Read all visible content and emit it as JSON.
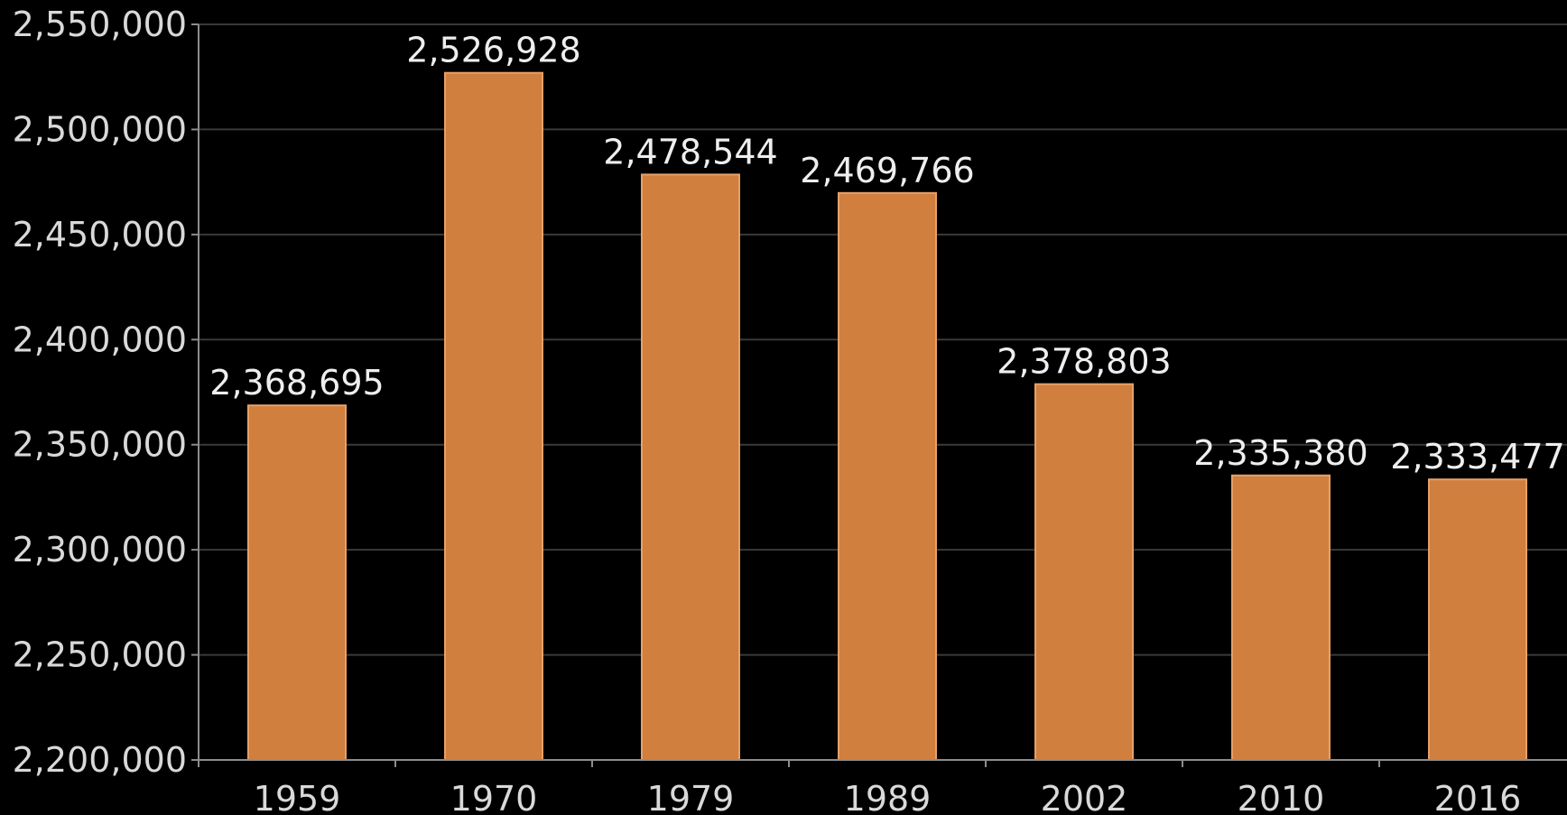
{
  "chart_data": {
    "type": "bar",
    "categories": [
      "1959",
      "1970",
      "1979",
      "1989",
      "2002",
      "2010",
      "2016"
    ],
    "values": [
      2368695,
      2526928,
      2478544,
      2469766,
      2378803,
      2335380,
      2333477
    ],
    "value_labels": [
      "2,368,695",
      "2,526,928",
      "2,478,544",
      "2,469,766",
      "2,378,803",
      "2,335,380",
      "2,333,477"
    ],
    "ylim": [
      2200000,
      2550000
    ],
    "y_ticks": [
      2200000,
      2250000,
      2300000,
      2350000,
      2400000,
      2450000,
      2500000,
      2550000
    ],
    "y_tick_labels": [
      "2,200,000",
      "2,250,000",
      "2,300,000",
      "2,350,000",
      "2,400,000",
      "2,450,000",
      "2,500,000",
      "2,550,000"
    ],
    "grid": true,
    "legend": "none",
    "colors": {
      "bar": "#d07f3e",
      "bar_edge": "#e6a068",
      "background": "#000000",
      "grid": "#3a3a3a",
      "axis": "#8c8c8c",
      "text": "#d9d9d9"
    }
  }
}
